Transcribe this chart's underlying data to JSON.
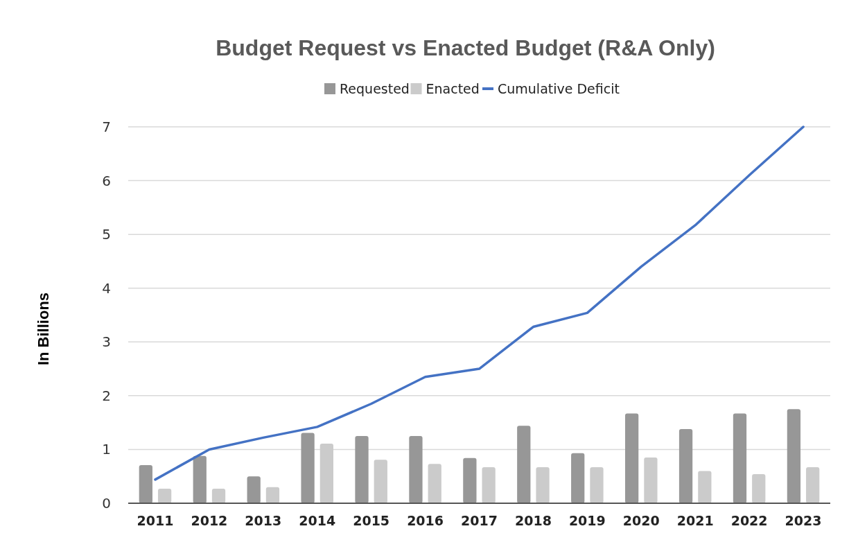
{
  "chart_data": {
    "type": "bar",
    "title": "Budget Request vs Enacted Budget (R&A Only)",
    "ylabel": "In Billions",
    "categories": [
      "2011",
      "2012",
      "2013",
      "2014",
      "2015",
      "2016",
      "2017",
      "2018",
      "2019",
      "2020",
      "2021",
      "2022",
      "2023"
    ],
    "series": [
      {
        "name": "Requested",
        "color": "#979797",
        "values": [
          0.71,
          0.88,
          0.5,
          1.31,
          1.25,
          1.25,
          0.84,
          1.44,
          0.93,
          1.67,
          1.38,
          1.67,
          1.75
        ]
      },
      {
        "name": "Enacted",
        "color": "#cbcbcb",
        "values": [
          0.27,
          0.27,
          0.3,
          1.11,
          0.81,
          0.73,
          0.67,
          0.67,
          0.67,
          0.85,
          0.6,
          0.54,
          0.67
        ]
      },
      {
        "name": "Cumulative Deficit",
        "type": "line",
        "color": "#4472c4",
        "values": [
          0.44,
          1.0,
          1.22,
          1.42,
          1.85,
          2.35,
          2.5,
          3.28,
          3.54,
          4.4,
          5.17,
          6.1,
          7.0
        ]
      }
    ],
    "ylim": [
      0,
      7
    ],
    "yticks": [
      0,
      1,
      2,
      3,
      4,
      5,
      6,
      7
    ],
    "grid": "y",
    "legend": "top"
  }
}
